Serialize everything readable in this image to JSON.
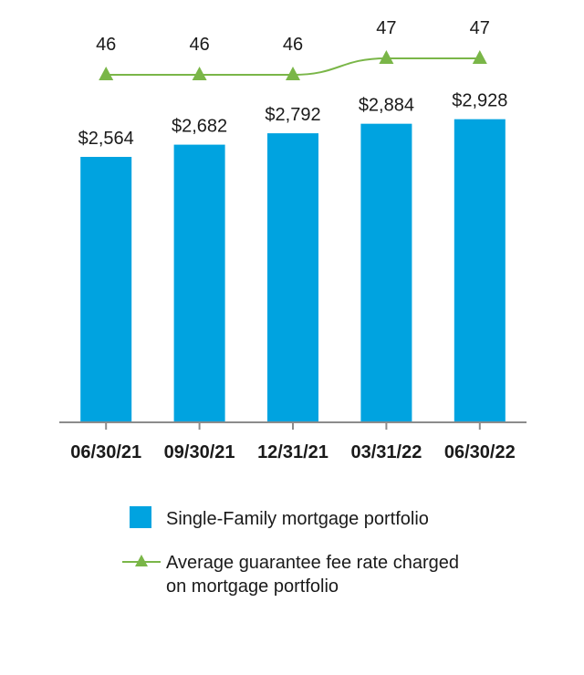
{
  "chart_data": {
    "type": "bar",
    "categories": [
      "06/30/21",
      "09/30/21",
      "12/31/21",
      "03/31/22",
      "06/30/22"
    ],
    "series": [
      {
        "name": "Single-Family mortgage portfolio",
        "type": "bar",
        "values": [
          2564,
          2682,
          2792,
          2884,
          2928
        ],
        "labels": [
          "$2,564",
          "$2,682",
          "$2,792",
          "$2,884",
          "$2,928"
        ],
        "color": "#00a3e0"
      },
      {
        "name": "Average guarantee fee rate charged on mortgage portfolio",
        "name_lines": [
          "Average guarantee fee rate charged",
          "on mortgage portfolio"
        ],
        "type": "line",
        "marker": "triangle",
        "values": [
          46,
          46,
          46,
          47,
          47
        ],
        "labels": [
          "46",
          "46",
          "46",
          "47",
          "47"
        ],
        "color": "#7ab648"
      }
    ],
    "title": "",
    "xlabel": "",
    "ylabel": "",
    "ylim": [
      0,
      3000
    ],
    "grid": false,
    "legend": "bottom"
  }
}
